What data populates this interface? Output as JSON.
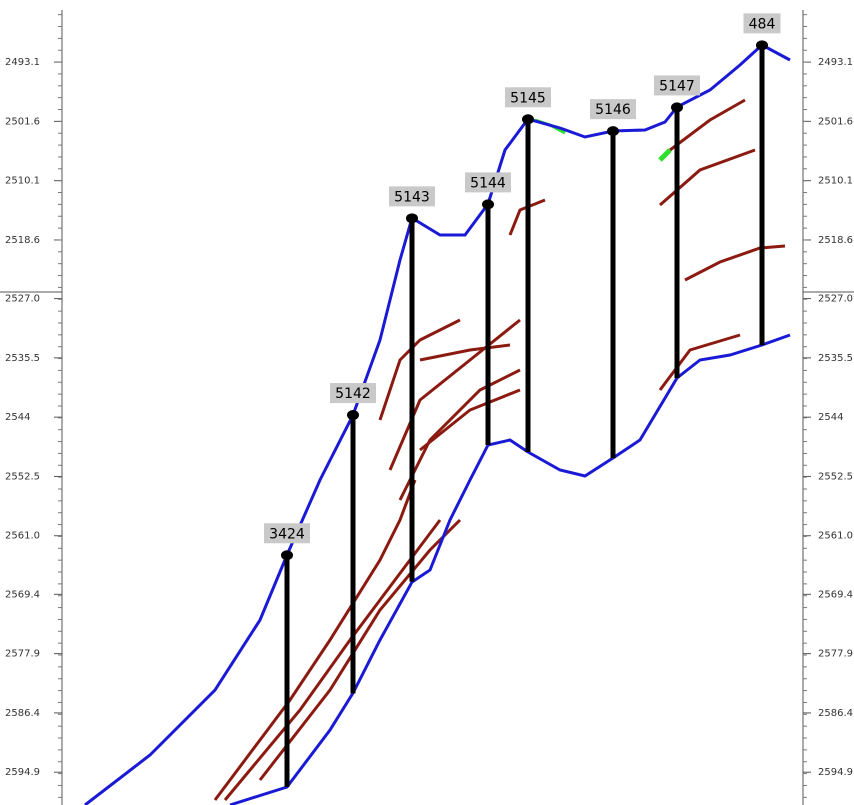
{
  "chart_data": {
    "type": "well-section",
    "yticks": [
      2493.1,
      2501.6,
      2510.1,
      2518.6,
      {
        "value": 2527,
        "label": "2527.0"
      },
      2535.5,
      2544,
      2552.5,
      {
        "value": 2561,
        "label": "2561.0"
      },
      2569.4,
      2577.9,
      2586.4,
      2594.9
    ],
    "ylim": [
      2484.2,
      2599.6
    ],
    "wells": [
      {
        "name": "3424",
        "top": 2563.8,
        "bottom": 2597.0
      },
      {
        "name": "5142",
        "top": 2543.7,
        "bottom": 2583.6
      },
      {
        "name": "5143",
        "top": 2515.5,
        "bottom": 2567.6
      },
      {
        "name": "5144",
        "top": 2513.5,
        "bottom": 2548.0
      },
      {
        "name": "5145",
        "top": 2501.3,
        "bottom": 2549.0
      },
      {
        "name": "5146",
        "top": 2503.0,
        "bottom": 2549.9
      },
      {
        "name": "5147",
        "top": 2499.6,
        "bottom": 2538.4
      },
      {
        "name": "484",
        "top": 2490.7,
        "bottom": 2533.7
      }
    ]
  }
}
